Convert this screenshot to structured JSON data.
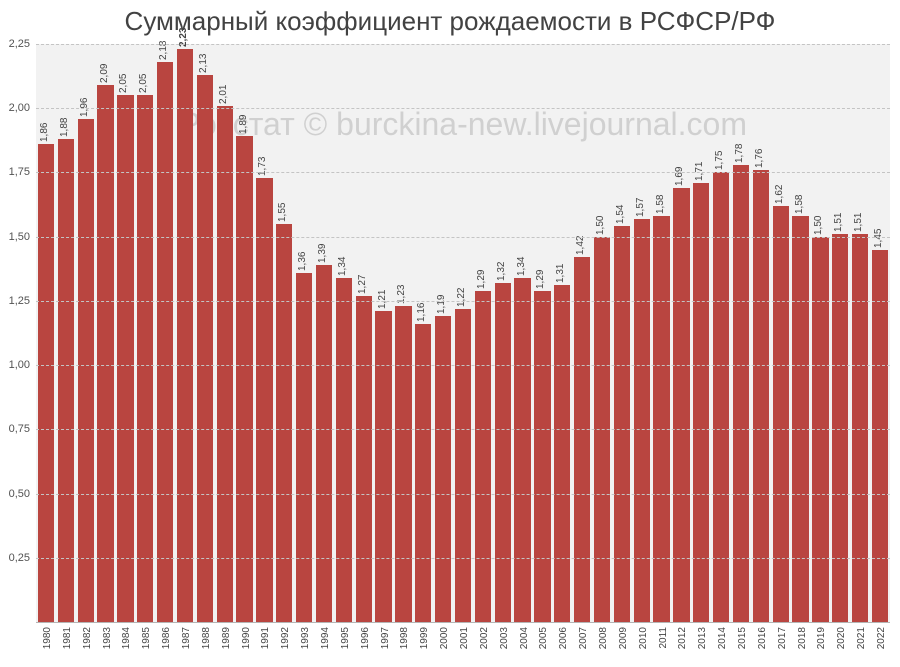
{
  "chart": {
    "type": "bar",
    "title": "Суммарный коэффициент рождаемости в РСФСР/РФ",
    "title_fontsize": 26,
    "title_color": "#424242",
    "watermark": "Росстат © burckina-new.livejournal.com",
    "watermark_color": "#d0d0d0",
    "watermark_fontsize": 32,
    "background_color": "#ffffff",
    "plot_background_color": "#f2f2f2",
    "grid_color": "#c4c4c4",
    "grid_style": "dashed",
    "axis_label_color": "#525252",
    "axis_label_fontsize": 11,
    "bar_label_fontsize": 10,
    "xlabel_fontsize": 10,
    "ylim": [
      0,
      2.25
    ],
    "ytick_step": 0.25,
    "yticks": [
      "0,25",
      "0,50",
      "0,75",
      "1,00",
      "1,25",
      "1,50",
      "1,75",
      "2,00",
      "2,25"
    ],
    "ytick_values": [
      0.25,
      0.5,
      0.75,
      1.0,
      1.25,
      1.5,
      1.75,
      2.0,
      2.25
    ],
    "bar_color": "#b94540",
    "highlight_color": "#b94540",
    "bar_gap_ratio": 0.18,
    "highlight_index": 7,
    "categories": [
      "1980",
      "1981",
      "1982",
      "1983",
      "1984",
      "1985",
      "1986",
      "1987",
      "1988",
      "1989",
      "1990",
      "1991",
      "1992",
      "1993",
      "1994",
      "1995",
      "1996",
      "1997",
      "1998",
      "1999",
      "2000",
      "2001",
      "2002",
      "2003",
      "2004",
      "2005",
      "2006",
      "2007",
      "2008",
      "2009",
      "2010",
      "2011",
      "2012",
      "2013",
      "2014",
      "2015",
      "2016",
      "2017",
      "2018",
      "2019",
      "2020",
      "2021",
      "2022"
    ],
    "values": [
      1.86,
      1.88,
      1.96,
      2.09,
      2.05,
      2.05,
      2.18,
      2.23,
      2.13,
      2.01,
      1.89,
      1.73,
      1.55,
      1.36,
      1.39,
      1.34,
      1.27,
      1.21,
      1.23,
      1.16,
      1.19,
      1.22,
      1.29,
      1.32,
      1.34,
      1.29,
      1.31,
      1.42,
      1.5,
      1.54,
      1.57,
      1.58,
      1.69,
      1.71,
      1.75,
      1.78,
      1.76,
      1.62,
      1.58,
      1.5,
      1.51,
      1.51,
      1.45
    ],
    "value_labels": [
      "1,86",
      "1,88",
      "1,96",
      "2,09",
      "2,05",
      "2,05",
      "2,18",
      "2,23",
      "2,13",
      "2,01",
      "1,89",
      "1,73",
      "1,55",
      "1,36",
      "1,39",
      "1,34",
      "1,27",
      "1,21",
      "1,23",
      "1,16",
      "1,19",
      "1,22",
      "1,29",
      "1,32",
      "1,34",
      "1,29",
      "1,31",
      "1,42",
      "1,50",
      "1,54",
      "1,57",
      "1,58",
      "1,69",
      "1,71",
      "1,75",
      "1,78",
      "1,76",
      "1,62",
      "1,58",
      "1,50",
      "1,51",
      "1,51",
      "1,45"
    ]
  }
}
